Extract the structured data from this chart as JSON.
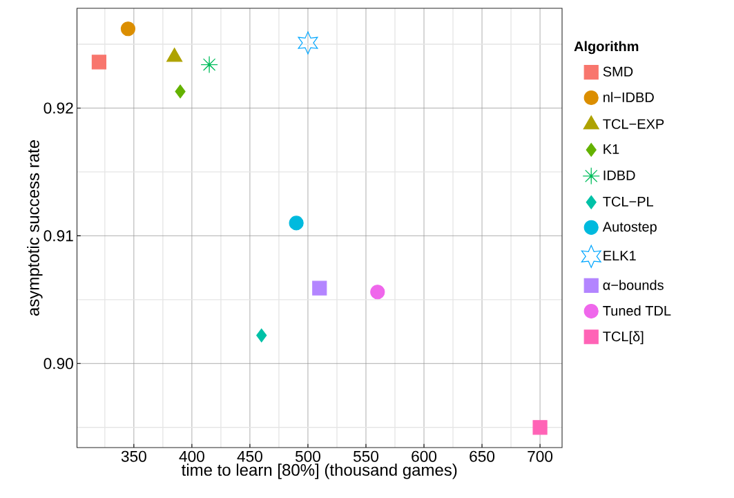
{
  "chart_data": {
    "type": "scatter",
    "xlabel": "time to learn [80%] (thousand games)",
    "ylabel": "asymptotic success rate",
    "legend_title": "Algorithm",
    "xlim": [
      301,
      719
    ],
    "ylim": [
      0.89342,
      0.92781
    ],
    "xticks": [
      350,
      400,
      450,
      500,
      550,
      600,
      650,
      700
    ],
    "yticks": [
      {
        "value": 0.9,
        "label": "0.90"
      },
      0.91,
      0.92
    ],
    "grid": true,
    "legend": "right",
    "series": [
      {
        "name": "SMD",
        "color": "#F8766D",
        "marker": "square",
        "x": [
          320
        ],
        "values": [
          0.9236
        ]
      },
      {
        "name": "nl−IDBD",
        "color": "#DB8E00",
        "marker": "circle",
        "x": [
          345
        ],
        "values": [
          0.9262
        ]
      },
      {
        "name": "TCL−EXP",
        "color": "#AEA200",
        "marker": "triangle",
        "x": [
          385
        ],
        "values": [
          0.924
        ]
      },
      {
        "name": "K1",
        "color": "#64B200",
        "marker": "diamond",
        "x": [
          390
        ],
        "values": [
          0.9213
        ]
      },
      {
        "name": "IDBD",
        "color": "#00BD5C",
        "marker": "cross",
        "x": [
          415
        ],
        "values": [
          0.9234
        ]
      },
      {
        "name": "TCL−PL",
        "color": "#00C1A7",
        "marker": "diamond",
        "x": [
          460
        ],
        "values": [
          0.9022
        ]
      },
      {
        "name": "Autostep",
        "color": "#00BADE",
        "marker": "circle",
        "x": [
          490
        ],
        "values": [
          0.911
        ]
      },
      {
        "name": "ELK1",
        "color": "#00A6FF",
        "x": [
          500
        ],
        "values": [
          0.9251
        ]
      },
      {
        "name": "α−bounds",
        "color": "#B385FF",
        "marker": "square",
        "x": [
          510
        ],
        "values": [
          0.9059
        ]
      },
      {
        "name": "Tuned TDL",
        "color": "#EF67EB",
        "marker": "circle",
        "x": [
          560
        ],
        "values": [
          0.9056
        ]
      },
      {
        "name": "TCL[δ]",
        "color": "#FF63B6",
        "marker": "square",
        "x": [
          700
        ],
        "values": [
          0.895
        ]
      }
    ]
  }
}
